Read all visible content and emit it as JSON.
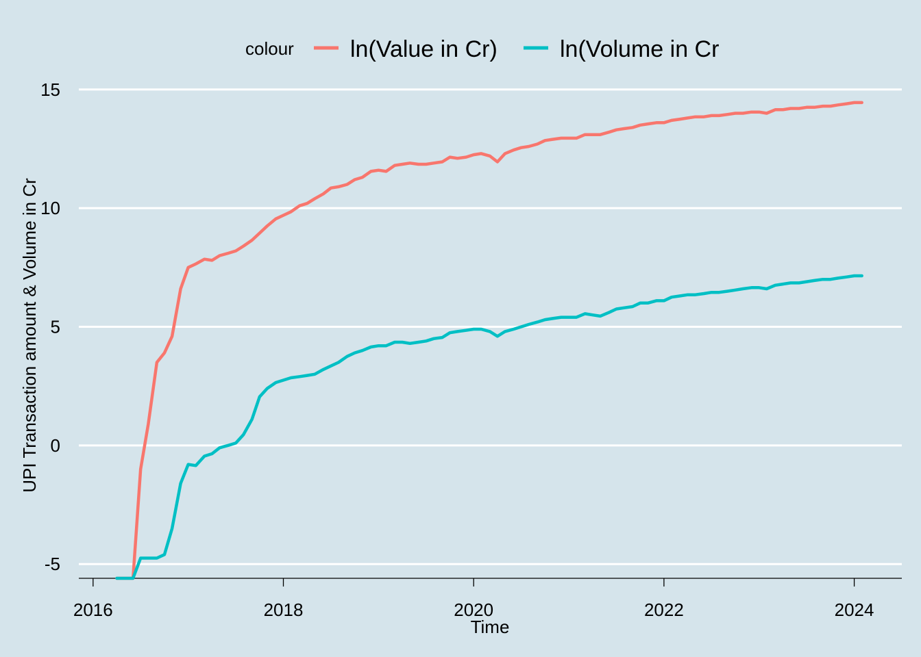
{
  "chart_data": {
    "type": "line",
    "xlabel": "Time",
    "ylabel": "UPI Transaction amount & Volume in Cr",
    "xlim": [
      2015.85,
      2024.5
    ],
    "ylim": [
      -5.6,
      15.6
    ],
    "x_ticks": [
      2016,
      2018,
      2020,
      2022,
      2024
    ],
    "y_ticks": [
      -5,
      0,
      5,
      10,
      15
    ],
    "grid": "horizontal",
    "legend": {
      "title": "colour",
      "position": "top"
    },
    "series": [
      {
        "name": "ln(Value in Cr)",
        "color": "#F8766D",
        "points": [
          [
            2016.25,
            -5.6
          ],
          [
            2016.33,
            -5.6
          ],
          [
            2016.42,
            -5.6
          ],
          [
            2016.5,
            -1.0
          ],
          [
            2016.58,
            0.9
          ],
          [
            2016.67,
            3.5
          ],
          [
            2016.75,
            3.9
          ],
          [
            2016.83,
            4.6
          ],
          [
            2016.92,
            6.6
          ],
          [
            2017.0,
            7.5
          ],
          [
            2017.08,
            7.65
          ],
          [
            2017.17,
            7.85
          ],
          [
            2017.25,
            7.8
          ],
          [
            2017.33,
            8.0
          ],
          [
            2017.42,
            8.1
          ],
          [
            2017.5,
            8.2
          ],
          [
            2017.58,
            8.4
          ],
          [
            2017.67,
            8.65
          ],
          [
            2017.75,
            8.95
          ],
          [
            2017.83,
            9.25
          ],
          [
            2017.92,
            9.55
          ],
          [
            2018.0,
            9.7
          ],
          [
            2018.08,
            9.85
          ],
          [
            2018.17,
            10.1
          ],
          [
            2018.25,
            10.2
          ],
          [
            2018.33,
            10.4
          ],
          [
            2018.42,
            10.6
          ],
          [
            2018.5,
            10.85
          ],
          [
            2018.58,
            10.9
          ],
          [
            2018.67,
            11.0
          ],
          [
            2018.75,
            11.2
          ],
          [
            2018.83,
            11.3
          ],
          [
            2018.92,
            11.55
          ],
          [
            2019.0,
            11.6
          ],
          [
            2019.08,
            11.55
          ],
          [
            2019.17,
            11.8
          ],
          [
            2019.25,
            11.85
          ],
          [
            2019.33,
            11.9
          ],
          [
            2019.42,
            11.85
          ],
          [
            2019.5,
            11.85
          ],
          [
            2019.58,
            11.9
          ],
          [
            2019.67,
            11.95
          ],
          [
            2019.75,
            12.15
          ],
          [
            2019.83,
            12.1
          ],
          [
            2019.92,
            12.15
          ],
          [
            2020.0,
            12.25
          ],
          [
            2020.08,
            12.3
          ],
          [
            2020.17,
            12.2
          ],
          [
            2020.25,
            11.95
          ],
          [
            2020.33,
            12.3
          ],
          [
            2020.42,
            12.45
          ],
          [
            2020.5,
            12.55
          ],
          [
            2020.58,
            12.6
          ],
          [
            2020.67,
            12.7
          ],
          [
            2020.75,
            12.85
          ],
          [
            2020.83,
            12.9
          ],
          [
            2020.92,
            12.95
          ],
          [
            2021.0,
            12.95
          ],
          [
            2021.08,
            12.95
          ],
          [
            2021.17,
            13.1
          ],
          [
            2021.25,
            13.1
          ],
          [
            2021.33,
            13.1
          ],
          [
            2021.42,
            13.2
          ],
          [
            2021.5,
            13.3
          ],
          [
            2021.58,
            13.35
          ],
          [
            2021.67,
            13.4
          ],
          [
            2021.75,
            13.5
          ],
          [
            2021.83,
            13.55
          ],
          [
            2021.92,
            13.6
          ],
          [
            2022.0,
            13.6
          ],
          [
            2022.08,
            13.7
          ],
          [
            2022.17,
            13.75
          ],
          [
            2022.25,
            13.8
          ],
          [
            2022.33,
            13.85
          ],
          [
            2022.42,
            13.85
          ],
          [
            2022.5,
            13.9
          ],
          [
            2022.58,
            13.9
          ],
          [
            2022.67,
            13.95
          ],
          [
            2022.75,
            14.0
          ],
          [
            2022.83,
            14.0
          ],
          [
            2022.92,
            14.05
          ],
          [
            2023.0,
            14.05
          ],
          [
            2023.08,
            14.0
          ],
          [
            2023.17,
            14.15
          ],
          [
            2023.25,
            14.15
          ],
          [
            2023.33,
            14.2
          ],
          [
            2023.42,
            14.2
          ],
          [
            2023.5,
            14.25
          ],
          [
            2023.58,
            14.25
          ],
          [
            2023.67,
            14.3
          ],
          [
            2023.75,
            14.3
          ],
          [
            2023.83,
            14.35
          ],
          [
            2023.92,
            14.4
          ],
          [
            2024.0,
            14.45
          ],
          [
            2024.08,
            14.45
          ]
        ]
      },
      {
        "name": "ln(Volume in Cr",
        "color": "#00BFC4",
        "points": [
          [
            2016.25,
            -5.6
          ],
          [
            2016.33,
            -5.6
          ],
          [
            2016.42,
            -5.6
          ],
          [
            2016.5,
            -4.75
          ],
          [
            2016.58,
            -4.75
          ],
          [
            2016.67,
            -4.75
          ],
          [
            2016.75,
            -4.6
          ],
          [
            2016.83,
            -3.5
          ],
          [
            2016.92,
            -1.6
          ],
          [
            2017.0,
            -0.8
          ],
          [
            2017.08,
            -0.85
          ],
          [
            2017.17,
            -0.45
          ],
          [
            2017.25,
            -0.35
          ],
          [
            2017.33,
            -0.1
          ],
          [
            2017.42,
            0.0
          ],
          [
            2017.5,
            0.1
          ],
          [
            2017.58,
            0.45
          ],
          [
            2017.67,
            1.1
          ],
          [
            2017.75,
            2.05
          ],
          [
            2017.83,
            2.4
          ],
          [
            2017.92,
            2.65
          ],
          [
            2018.0,
            2.75
          ],
          [
            2018.08,
            2.85
          ],
          [
            2018.17,
            2.9
          ],
          [
            2018.25,
            2.95
          ],
          [
            2018.33,
            3.0
          ],
          [
            2018.42,
            3.2
          ],
          [
            2018.5,
            3.35
          ],
          [
            2018.58,
            3.5
          ],
          [
            2018.67,
            3.75
          ],
          [
            2018.75,
            3.9
          ],
          [
            2018.83,
            4.0
          ],
          [
            2018.92,
            4.15
          ],
          [
            2019.0,
            4.2
          ],
          [
            2019.08,
            4.2
          ],
          [
            2019.17,
            4.35
          ],
          [
            2019.25,
            4.35
          ],
          [
            2019.33,
            4.3
          ],
          [
            2019.42,
            4.35
          ],
          [
            2019.5,
            4.4
          ],
          [
            2019.58,
            4.5
          ],
          [
            2019.67,
            4.55
          ],
          [
            2019.75,
            4.75
          ],
          [
            2019.83,
            4.8
          ],
          [
            2019.92,
            4.85
          ],
          [
            2020.0,
            4.9
          ],
          [
            2020.08,
            4.9
          ],
          [
            2020.17,
            4.8
          ],
          [
            2020.25,
            4.6
          ],
          [
            2020.33,
            4.8
          ],
          [
            2020.42,
            4.9
          ],
          [
            2020.5,
            5.0
          ],
          [
            2020.58,
            5.1
          ],
          [
            2020.67,
            5.2
          ],
          [
            2020.75,
            5.3
          ],
          [
            2020.83,
            5.35
          ],
          [
            2020.92,
            5.4
          ],
          [
            2021.0,
            5.4
          ],
          [
            2021.08,
            5.4
          ],
          [
            2021.17,
            5.55
          ],
          [
            2021.25,
            5.5
          ],
          [
            2021.33,
            5.45
          ],
          [
            2021.42,
            5.6
          ],
          [
            2021.5,
            5.75
          ],
          [
            2021.58,
            5.8
          ],
          [
            2021.67,
            5.85
          ],
          [
            2021.75,
            6.0
          ],
          [
            2021.83,
            6.0
          ],
          [
            2021.92,
            6.1
          ],
          [
            2022.0,
            6.1
          ],
          [
            2022.08,
            6.25
          ],
          [
            2022.17,
            6.3
          ],
          [
            2022.25,
            6.35
          ],
          [
            2022.33,
            6.35
          ],
          [
            2022.42,
            6.4
          ],
          [
            2022.5,
            6.45
          ],
          [
            2022.58,
            6.45
          ],
          [
            2022.67,
            6.5
          ],
          [
            2022.75,
            6.55
          ],
          [
            2022.83,
            6.6
          ],
          [
            2022.92,
            6.65
          ],
          [
            2023.0,
            6.65
          ],
          [
            2023.08,
            6.6
          ],
          [
            2023.17,
            6.75
          ],
          [
            2023.25,
            6.8
          ],
          [
            2023.33,
            6.85
          ],
          [
            2023.42,
            6.85
          ],
          [
            2023.5,
            6.9
          ],
          [
            2023.58,
            6.95
          ],
          [
            2023.67,
            7.0
          ],
          [
            2023.75,
            7.0
          ],
          [
            2023.83,
            7.05
          ],
          [
            2023.92,
            7.1
          ],
          [
            2024.0,
            7.15
          ],
          [
            2024.08,
            7.15
          ]
        ]
      }
    ]
  }
}
